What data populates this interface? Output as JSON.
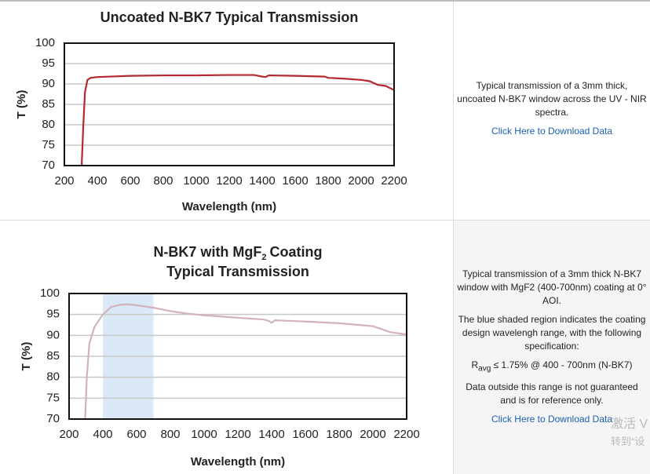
{
  "chart_data": [
    {
      "type": "line",
      "title": "Uncoated N-BK7 Typical Transmission",
      "xlabel": "Wavelength (nm)",
      "ylabel": "T (%)",
      "xlim": [
        200,
        2200
      ],
      "xticks": [
        200,
        400,
        600,
        800,
        1000,
        1200,
        1400,
        1600,
        1800,
        2000,
        2200
      ],
      "ylim": [
        70,
        100
      ],
      "yticks": [
        70,
        75,
        80,
        85,
        90,
        95,
        100
      ],
      "grid": true,
      "series": [
        {
          "color": "#b5282e",
          "x": [
            305,
            315,
            325,
            340,
            360,
            400,
            600,
            800,
            1000,
            1200,
            1350,
            1400,
            1420,
            1440,
            1600,
            1780,
            1800,
            1900,
            2000,
            2050,
            2100,
            2150,
            2200
          ],
          "values": [
            70,
            80,
            88,
            91,
            91.5,
            91.7,
            92,
            92.1,
            92.1,
            92.2,
            92.2,
            91.8,
            91.7,
            92.1,
            92,
            91.8,
            91.5,
            91.3,
            91,
            90.7,
            89.8,
            89.5,
            88.5
          ]
        }
      ]
    },
    {
      "type": "line",
      "title": "N-BK7 with MgF",
      "title_subscript": "2",
      "title_rest": "Coating",
      "title_line2": "Typical Transmission",
      "xlabel": "Wavelength (nm)",
      "ylabel": "T (%)",
      "xlim": [
        200,
        2200
      ],
      "xticks": [
        200,
        400,
        600,
        800,
        1000,
        1200,
        1400,
        1600,
        1800,
        2000,
        2200
      ],
      "ylim": [
        70,
        100
      ],
      "yticks": [
        70,
        75,
        80,
        85,
        90,
        95,
        100
      ],
      "grid": true,
      "shaded_range": [
        400,
        700
      ],
      "shaded_color": "#dbe8f5",
      "series": [
        {
          "color": "#d2b3bb",
          "x": [
            295,
            305,
            320,
            350,
            400,
            450,
            500,
            550,
            600,
            700,
            800,
            900,
            1000,
            1200,
            1350,
            1380,
            1400,
            1420,
            1600,
            1800,
            2000,
            2050,
            2100,
            2150,
            2200
          ],
          "values": [
            70,
            80,
            88,
            92,
            95,
            96.8,
            97.3,
            97.4,
            97.2,
            96.6,
            95.8,
            95.2,
            94.8,
            94.2,
            93.8,
            93.5,
            93,
            93.6,
            93.3,
            92.9,
            92.2,
            91.5,
            90.8,
            90.5,
            90.2
          ]
        }
      ]
    }
  ],
  "panels": [
    {
      "paragraphs": [
        "Typical transmission of a 3mm thick, uncoated N-BK7 window across the UV - NIR spectra."
      ],
      "link": "Click Here to Download Data"
    },
    {
      "paragraphs": [
        "Typical transmission of a 3mm thick N-BK7 window with MgF2 (400-700nm) coating at 0° AOI.",
        "The blue shaded region indicates the coating design wavelengh range, with the following specification:"
      ],
      "spec": {
        "symbol": "R",
        "subscript": "avg",
        "text": "≤ 1.75% @ 400 - 700nm (N-BK7)"
      },
      "note": "Data outside this range is not guaranteed and is for reference only.",
      "link": "Click Here to Download Data"
    }
  ],
  "watermark": [
    "激活 V",
    "转到“设"
  ]
}
